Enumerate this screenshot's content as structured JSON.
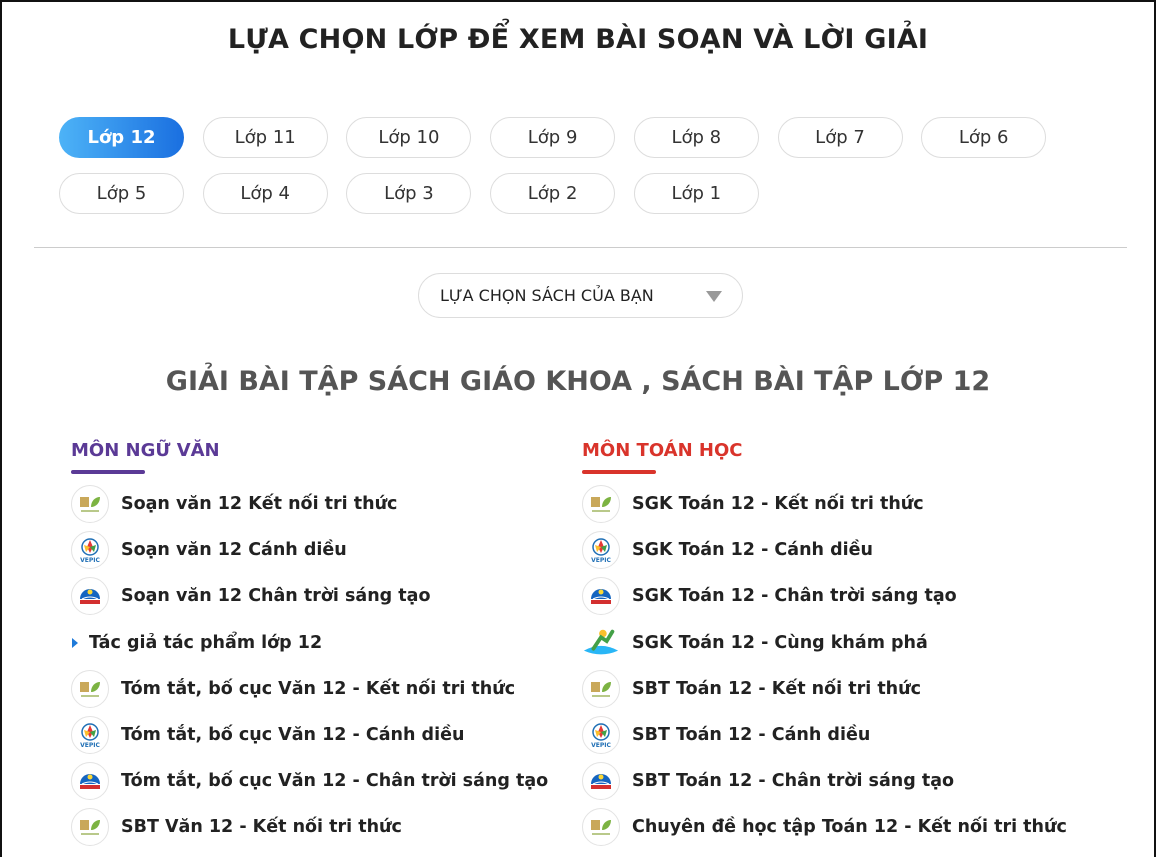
{
  "title": "LỰA CHỌN LỚP ĐỂ XEM BÀI SOẠN VÀ LỜI GIẢI",
  "grades": [
    "Lớp 12",
    "Lớp 11",
    "Lớp 10",
    "Lớp 9",
    "Lớp 8",
    "Lớp 7",
    "Lớp 6",
    "Lớp 5",
    "Lớp 4",
    "Lớp 3",
    "Lớp 2",
    "Lớp 1"
  ],
  "active_grade": "Lớp 12",
  "book_select": {
    "label": "LỰA CHỌN SÁCH CỦA BẠN"
  },
  "section_title": "GIẢI BÀI TẬP SÁCH GIÁO KHOA , SÁCH BÀI TẬP LỚP 12",
  "colors": {
    "accent": "#1a6fe0",
    "van": "#5b3a96",
    "toan": "#d9342b"
  },
  "columns": [
    {
      "title": "MÔN NGỮ VĂN",
      "color": "#5b3a96",
      "items": [
        {
          "label": "Soạn văn 12 Kết nối tri thức",
          "icon": "kntt-logo-icon"
        },
        {
          "label": "Soạn văn 12 Cánh diều",
          "icon": "vepic-logo-icon"
        },
        {
          "label": "Soạn văn 12 Chân trời sáng tạo",
          "icon": "ctst-logo-icon"
        },
        {
          "label": "Tác giả tác phẩm lớp 12",
          "icon": "triangle-bullet-icon"
        },
        {
          "label": "Tóm tắt, bố cục Văn 12 - Kết nối tri thức",
          "icon": "kntt-logo-icon"
        },
        {
          "label": "Tóm tắt, bố cục Văn 12 - Cánh diều",
          "icon": "vepic-logo-icon"
        },
        {
          "label": "Tóm tắt, bố cục Văn 12 - Chân trời sáng tạo",
          "icon": "ctst-logo-icon"
        },
        {
          "label": "SBT Văn 12 - Kết nối tri thức",
          "icon": "kntt-logo-icon"
        }
      ]
    },
    {
      "title": "MÔN TOÁN HỌC",
      "color": "#d9342b",
      "items": [
        {
          "label": "SGK Toán 12 - Kết nối tri thức",
          "icon": "kntt-logo-icon"
        },
        {
          "label": "SGK Toán 12 - Cánh diều",
          "icon": "vepic-logo-icon"
        },
        {
          "label": "SGK Toán 12 - Chân trời sáng tạo",
          "icon": "ctst-logo-icon"
        },
        {
          "label": "SGK Toán 12 - Cùng khám phá",
          "icon": "ckp-logo-icon"
        },
        {
          "label": "SBT Toán 12 - Kết nối tri thức",
          "icon": "kntt-logo-icon"
        },
        {
          "label": "SBT Toán 12 - Cánh diều",
          "icon": "vepic-logo-icon"
        },
        {
          "label": "SBT Toán 12 - Chân trời sáng tạo",
          "icon": "ctst-logo-icon"
        },
        {
          "label": "Chuyên đề học tập Toán 12 - Kết nối tri thức",
          "icon": "kntt-logo-icon"
        }
      ]
    }
  ]
}
